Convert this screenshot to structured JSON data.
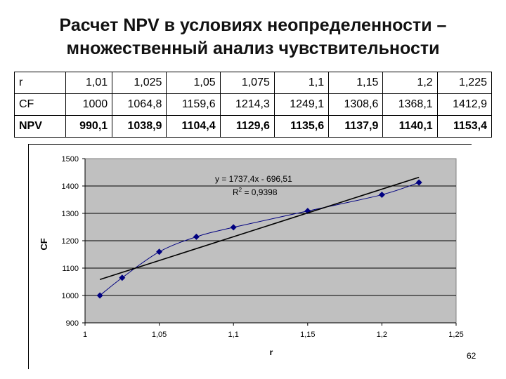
{
  "slide": {
    "title_line1": "Расчет NPV в условиях неопределенности –",
    "title_line2": "множественный анализ чувствительности",
    "page_number": "62"
  },
  "table": {
    "rows": [
      {
        "label": "r",
        "cells": [
          "1,01",
          "1,025",
          "1,05",
          "1,075",
          "1,1",
          "1,15",
          "1,2",
          "1,225"
        ]
      },
      {
        "label": "CF",
        "cells": [
          "1000",
          "1064,8",
          "1159,6",
          "1214,3",
          "1249,1",
          "1308,6",
          "1368,1",
          "1412,9"
        ]
      },
      {
        "label": "NPV",
        "cells": [
          "990,1",
          "1038,9",
          "1104,4",
          "1129,6",
          "1135,6",
          "1137,9",
          "1140,1",
          "1153,4"
        ]
      }
    ]
  },
  "chart_data": {
    "type": "scatter",
    "xlabel": "r",
    "ylabel": "CF",
    "xlim": [
      1,
      1.25
    ],
    "ylim": [
      900,
      1500
    ],
    "xticks": [
      "1",
      "1,05",
      "1,1",
      "1,15",
      "1,2",
      "1,25"
    ],
    "yticks": [
      "900",
      "1000",
      "1100",
      "1200",
      "1300",
      "1400",
      "1500"
    ],
    "grid": true,
    "plot_area_color": "#c0c0c0",
    "series": [
      {
        "x": [
          1.01,
          1.025,
          1.05,
          1.075,
          1.1,
          1.15,
          1.2,
          1.225
        ],
        "y": [
          1000,
          1064.8,
          1159.6,
          1214.3,
          1249.1,
          1308.6,
          1368.1,
          1412.9
        ],
        "color": "#000080",
        "marker": "diamond"
      }
    ],
    "trendline": {
      "slope": 1737.4,
      "intercept": -696.51,
      "color": "#000000"
    },
    "annotation": {
      "equation": "y = 1737,4x - 696,51",
      "r2_prefix": "R",
      "r2_sup": "2",
      "r2_value": " = 0,9398"
    }
  }
}
